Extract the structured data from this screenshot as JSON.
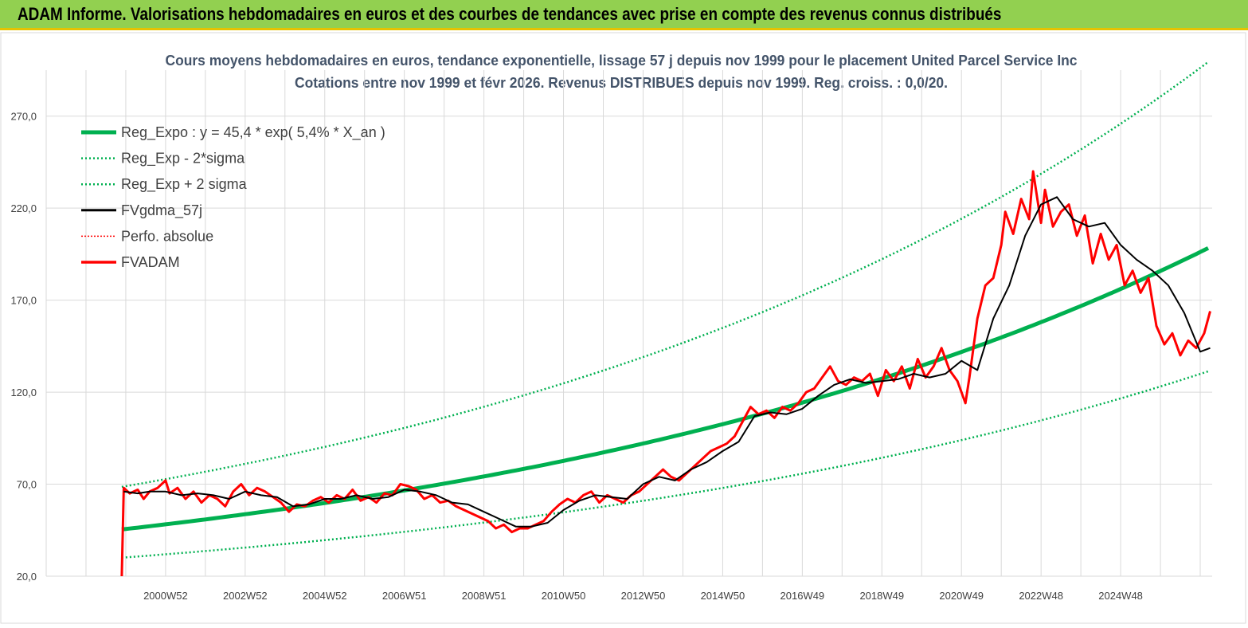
{
  "header": {
    "title": "ADAM Informe. Valorisations hebdomadaires en euros et des courbes de tendances avec prise en compte des revenus connus distribués"
  },
  "chart_data": {
    "type": "line",
    "title": "Cours moyens hebdomadaires en euros, tendance exponentielle, lissage 57 j depuis nov 1999 pour le placement United Parcel Service Inc",
    "subtitle": "Cotations entre nov 1999 et févr 2026. Revenus DISTRIBUES depuis nov 1999. Reg. croiss. : 0,0/20.",
    "xlabel": "",
    "ylabel": "",
    "ylim": [
      20,
      295
    ],
    "xlim": [
      1997.0,
      2026.3
    ],
    "y_ticks": [
      20,
      70,
      120,
      170,
      220,
      270
    ],
    "y_tick_labels": [
      "20,0",
      "70,0",
      "120,0",
      "170,0",
      "220,0",
      "270,0"
    ],
    "x_tick_labels": [
      "2000W52",
      "2002W52",
      "2004W52",
      "2006W51",
      "2008W51",
      "2010W50",
      "2012W50",
      "2014W50",
      "2016W49",
      "2018W49",
      "2020W49",
      "2022W48",
      "2024W48"
    ],
    "x_tick_positions": [
      2000.0,
      2002.0,
      2004.0,
      2006.0,
      2008.0,
      2010.0,
      2012.0,
      2014.0,
      2016.0,
      2018.0,
      2020.0,
      2022.0,
      2024.0
    ],
    "grid": true,
    "legend_position": "top-left",
    "trend": {
      "a": 45.4,
      "rate": 0.054,
      "start": 1998.9,
      "end": 2026.25,
      "sigma_factor": 1.51
    },
    "series": [
      {
        "name": "Reg_Expo : y = 45,4 * exp( 5,4% *  X_an )",
        "color": "#00b050",
        "style": "solid-thick"
      },
      {
        "name": "Reg_Exp - 2*sigma",
        "color": "#00b050",
        "style": "dotted"
      },
      {
        "name": "Reg_Exp + 2 sigma",
        "color": "#00b050",
        "style": "dotted"
      },
      {
        "name": "FVgdma_57j",
        "color": "#000000",
        "style": "solid",
        "x": [
          1998.95,
          1999.3,
          1999.6,
          2000.0,
          2000.4,
          2000.8,
          2001.2,
          2001.6,
          2002.0,
          2002.4,
          2002.8,
          2003.2,
          2003.6,
          2004.0,
          2004.4,
          2004.8,
          2005.2,
          2005.6,
          2006.0,
          2006.4,
          2006.8,
          2007.2,
          2007.6,
          2008.0,
          2008.4,
          2008.8,
          2009.2,
          2009.6,
          2010.0,
          2010.4,
          2010.8,
          2011.2,
          2011.6,
          2012.0,
          2012.4,
          2012.8,
          2013.2,
          2013.6,
          2014.0,
          2014.4,
          2014.8,
          2015.2,
          2015.6,
          2016.0,
          2016.4,
          2016.8,
          2017.2,
          2017.6,
          2018.0,
          2018.4,
          2018.8,
          2019.2,
          2019.6,
          2020.0,
          2020.4,
          2020.8,
          2021.2,
          2021.6,
          2022.0,
          2022.4,
          2022.8,
          2023.2,
          2023.6,
          2024.0,
          2024.4,
          2024.8,
          2025.2,
          2025.6,
          2026.0,
          2026.25
        ],
        "y": [
          66,
          65,
          66,
          66,
          64,
          65,
          64,
          62,
          66,
          64,
          63,
          58,
          59,
          62,
          62,
          64,
          62,
          63,
          67,
          66,
          64,
          60,
          59,
          55,
          51,
          47,
          47,
          49,
          56,
          61,
          64,
          63,
          62,
          70,
          74,
          72,
          78,
          82,
          88,
          93,
          107,
          109,
          108,
          111,
          118,
          124,
          127,
          125,
          126,
          127,
          130,
          128,
          130,
          137,
          132,
          160,
          178,
          205,
          222,
          226,
          214,
          210,
          212,
          200,
          192,
          186,
          178,
          163,
          142,
          144
        ]
      },
      {
        "name": "Perfo. absolue",
        "color": "#ff0000",
        "style": "dotted"
      },
      {
        "name": "FVADAM",
        "color": "#ff0000",
        "style": "solid-thick",
        "x": [
          1998.9,
          1998.95,
          1999.1,
          1999.3,
          1999.45,
          1999.6,
          1999.8,
          2000.0,
          2000.1,
          2000.3,
          2000.5,
          2000.7,
          2000.9,
          2001.1,
          2001.3,
          2001.5,
          2001.7,
          2001.9,
          2002.1,
          2002.3,
          2002.5,
          2002.7,
          2002.9,
          2003.1,
          2003.3,
          2003.5,
          2003.7,
          2003.9,
          2004.1,
          2004.3,
          2004.5,
          2004.7,
          2004.9,
          2005.1,
          2005.3,
          2005.5,
          2005.7,
          2005.9,
          2006.1,
          2006.3,
          2006.5,
          2006.7,
          2006.9,
          2007.1,
          2007.3,
          2007.5,
          2007.7,
          2007.9,
          2008.1,
          2008.3,
          2008.5,
          2008.7,
          2008.9,
          2009.1,
          2009.3,
          2009.5,
          2009.7,
          2009.9,
          2010.1,
          2010.3,
          2010.5,
          2010.7,
          2010.9,
          2011.1,
          2011.3,
          2011.5,
          2011.7,
          2011.9,
          2012.1,
          2012.3,
          2012.5,
          2012.7,
          2012.9,
          2013.1,
          2013.3,
          2013.5,
          2013.7,
          2013.9,
          2014.1,
          2014.3,
          2014.5,
          2014.7,
          2014.9,
          2015.1,
          2015.3,
          2015.5,
          2015.7,
          2015.9,
          2016.1,
          2016.3,
          2016.5,
          2016.7,
          2016.9,
          2017.1,
          2017.3,
          2017.5,
          2017.7,
          2017.9,
          2018.1,
          2018.3,
          2018.5,
          2018.7,
          2018.9,
          2019.1,
          2019.3,
          2019.5,
          2019.7,
          2019.9,
          2020.1,
          2020.2,
          2020.4,
          2020.6,
          2020.8,
          2021.0,
          2021.1,
          2021.3,
          2021.5,
          2021.7,
          2021.8,
          2022.0,
          2022.1,
          2022.3,
          2022.5,
          2022.7,
          2022.9,
          2023.1,
          2023.3,
          2023.5,
          2023.7,
          2023.9,
          2024.1,
          2024.3,
          2024.5,
          2024.7,
          2024.9,
          2025.1,
          2025.3,
          2025.5,
          2025.7,
          2025.9,
          2026.1,
          2026.25
        ],
        "y": [
          20,
          68,
          65,
          67,
          62,
          66,
          68,
          72,
          65,
          68,
          62,
          66,
          60,
          64,
          62,
          58,
          66,
          70,
          64,
          68,
          66,
          63,
          60,
          55,
          59,
          58,
          61,
          63,
          60,
          64,
          62,
          67,
          61,
          63,
          60,
          65,
          64,
          70,
          69,
          67,
          62,
          64,
          60,
          61,
          58,
          56,
          54,
          52,
          50,
          46,
          48,
          44,
          46,
          46,
          48,
          50,
          55,
          59,
          62,
          60,
          64,
          66,
          60,
          64,
          62,
          60,
          64,
          66,
          70,
          74,
          78,
          74,
          72,
          76,
          80,
          84,
          88,
          90,
          92,
          96,
          104,
          112,
          108,
          110,
          106,
          112,
          110,
          114,
          120,
          122,
          128,
          134,
          126,
          124,
          128,
          126,
          130,
          118,
          132,
          126,
          134,
          122,
          138,
          128,
          134,
          144,
          132,
          126,
          114,
          128,
          160,
          178,
          182,
          200,
          218,
          206,
          225,
          214,
          240,
          212,
          230,
          210,
          218,
          222,
          205,
          216,
          190,
          206,
          192,
          200,
          178,
          186,
          174,
          182,
          156,
          146,
          152,
          140,
          148,
          144,
          152,
          164
        ]
      }
    ]
  }
}
